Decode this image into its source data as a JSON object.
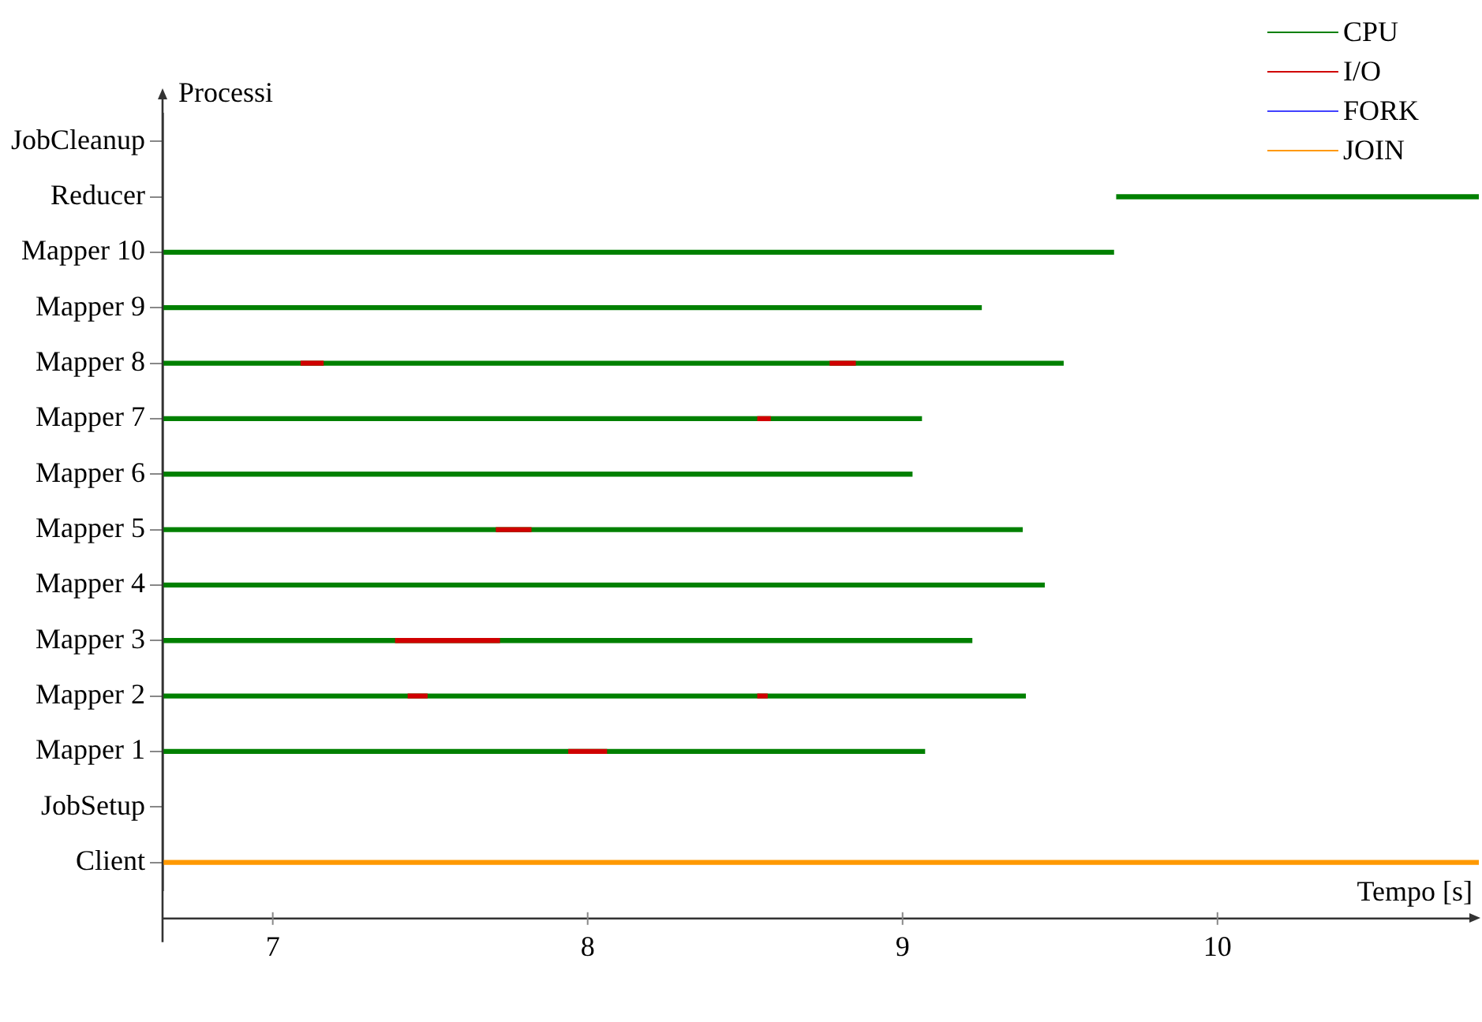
{
  "chart_data": {
    "type": "bar",
    "orientation": "horizontal",
    "xlabel": "Tempo [s]",
    "ylabel": "Processi",
    "categories": [
      "JobCleanup",
      "Reducer",
      "Mapper 10",
      "Mapper 9",
      "Mapper 8",
      "Mapper 7",
      "Mapper 6",
      "Mapper 5",
      "Mapper 4",
      "Mapper 3",
      "Mapper 2",
      "Mapper 1",
      "JobSetup",
      "Client"
    ],
    "series": [
      {
        "name": "CPU",
        "color": "#008000",
        "base": [
          null,
          9.68,
          6.65,
          6.65,
          6.65,
          6.65,
          6.65,
          6.65,
          6.65,
          6.65,
          6.65,
          6.65,
          null,
          null
        ],
        "values": [
          null,
          1.15,
          3.02,
          2.6,
          2.86,
          2.41,
          2.38,
          2.73,
          2.8,
          2.57,
          2.74,
          2.42,
          null,
          null
        ]
      },
      {
        "name": "I/O",
        "color": "#d00000",
        "base": [
          null,
          null,
          null,
          null,
          7.09,
          8.54,
          null,
          7.71,
          null,
          7.39,
          7.43,
          7.94,
          null,
          null
        ],
        "values": [
          null,
          null,
          null,
          null,
          0.07,
          0.04,
          null,
          0.11,
          null,
          0.33,
          0.06,
          0.12,
          null,
          null
        ]
      },
      {
        "color": "#d00000",
        "base": [
          null,
          null,
          null,
          null,
          8.77,
          null,
          null,
          null,
          null,
          null,
          8.54,
          null,
          null,
          null
        ],
        "values": [
          null,
          null,
          null,
          null,
          0.08,
          null,
          null,
          null,
          null,
          null,
          0.03,
          null,
          null,
          null
        ]
      },
      {
        "name": "FORK",
        "color": "#4040ff",
        "values": [
          null,
          null,
          null,
          null,
          null,
          null,
          null,
          null,
          null,
          null,
          null,
          null,
          null,
          null
        ]
      },
      {
        "name": "JOIN",
        "color": "#ff9900",
        "base": [
          null,
          null,
          null,
          null,
          null,
          null,
          null,
          null,
          null,
          null,
          null,
          null,
          null,
          6.65
        ],
        "values": [
          null,
          null,
          null,
          null,
          null,
          null,
          null,
          null,
          null,
          null,
          null,
          null,
          null,
          4.18
        ]
      }
    ],
    "xlim": [
      6.65,
      10.83
    ],
    "xticks": [
      7,
      8,
      9,
      10
    ],
    "grid": false,
    "legend": "top right"
  }
}
